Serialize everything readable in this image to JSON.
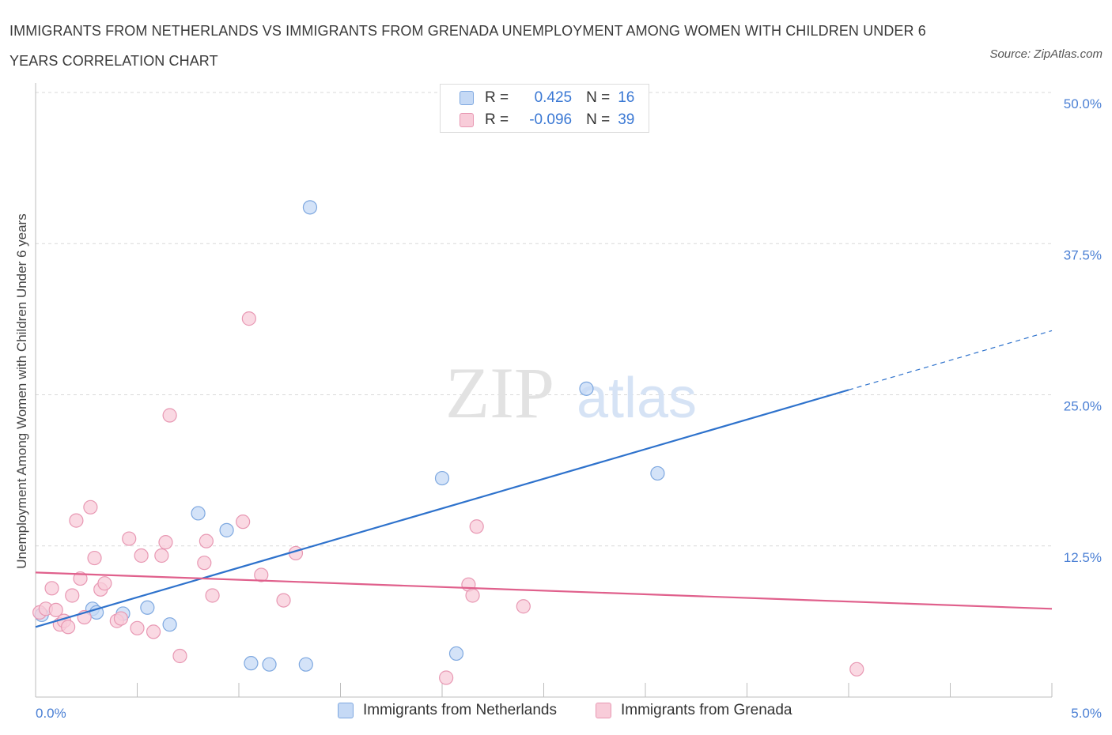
{
  "header": {
    "title": "IMMIGRANTS FROM NETHERLANDS VS IMMIGRANTS FROM GRENADA UNEMPLOYMENT AMONG WOMEN WITH CHILDREN UNDER 6 YEARS CORRELATION CHART",
    "source": "Source: ZipAtlas.com"
  },
  "watermark": {
    "zip": "ZIP",
    "atlas": "atlas"
  },
  "legend": {
    "r_label": "R =",
    "n_label": "N =",
    "rows": [
      {
        "r": "0.425",
        "n": "16"
      },
      {
        "r": "-0.096",
        "n": "39"
      }
    ]
  },
  "colors": {
    "netherlands_fill": "#c5d9f5",
    "netherlands_stroke": "#7ea8e0",
    "netherlands_line": "#2e72cc",
    "grenada_fill": "#f8ccd9",
    "grenada_stroke": "#e898b3",
    "grenada_line": "#e0608c",
    "tick_text": "#4a7fd4",
    "grid": "#d9d9d9"
  },
  "chart_data": {
    "type": "scatter",
    "title": "IMMIGRANTS FROM NETHERLANDS VS IMMIGRANTS FROM GRENADA UNEMPLOYMENT AMONG WOMEN WITH CHILDREN UNDER 6 YEARS CORRELATION CHART",
    "xlabel": "",
    "ylabel": "Unemployment Among Women with Children Under 6 years",
    "xlim": [
      0,
      5
    ],
    "ylim": [
      0,
      50
    ],
    "x_tick_labels": [
      "0.0%",
      "5.0%"
    ],
    "y_ticks": [
      12.5,
      25.0,
      37.5,
      50.0
    ],
    "y_tick_labels": [
      "12.5%",
      "25.0%",
      "37.5%",
      "50.0%"
    ],
    "grid": true,
    "legend_position": "bottom",
    "series": [
      {
        "name": "Immigrants from Netherlands",
        "r": 0.425,
        "n": 16,
        "points": [
          [
            0.03,
            6.8
          ],
          [
            0.28,
            7.3
          ],
          [
            0.3,
            7.0
          ],
          [
            0.43,
            6.9
          ],
          [
            0.55,
            7.4
          ],
          [
            0.66,
            6.0
          ],
          [
            0.8,
            15.2
          ],
          [
            0.94,
            13.8
          ],
          [
            1.06,
            2.8
          ],
          [
            1.15,
            2.7
          ],
          [
            1.35,
            40.5
          ],
          [
            1.33,
            2.7
          ],
          [
            2.0,
            18.1
          ],
          [
            2.07,
            3.6
          ],
          [
            2.71,
            25.5
          ],
          [
            3.06,
            18.5
          ]
        ],
        "trend": {
          "x0": 0.0,
          "y0": 5.8,
          "x1": 4.0,
          "y1": 25.4,
          "dash_to_x": 5.0,
          "dash_to_y": 30.3
        }
      },
      {
        "name": "Immigrants from Grenada",
        "r": -0.096,
        "n": 39,
        "points": [
          [
            0.02,
            7.0
          ],
          [
            0.05,
            7.3
          ],
          [
            0.08,
            9.0
          ],
          [
            0.1,
            7.2
          ],
          [
            0.12,
            6.0
          ],
          [
            0.14,
            6.3
          ],
          [
            0.16,
            5.8
          ],
          [
            0.18,
            8.4
          ],
          [
            0.2,
            14.6
          ],
          [
            0.22,
            9.8
          ],
          [
            0.24,
            6.6
          ],
          [
            0.27,
            15.7
          ],
          [
            0.29,
            11.5
          ],
          [
            0.32,
            8.9
          ],
          [
            0.34,
            9.4
          ],
          [
            0.4,
            6.3
          ],
          [
            0.42,
            6.5
          ],
          [
            0.46,
            13.1
          ],
          [
            0.5,
            5.7
          ],
          [
            0.52,
            11.7
          ],
          [
            0.58,
            5.4
          ],
          [
            0.62,
            11.7
          ],
          [
            0.64,
            12.8
          ],
          [
            0.66,
            23.3
          ],
          [
            0.71,
            3.4
          ],
          [
            0.83,
            11.1
          ],
          [
            0.84,
            12.9
          ],
          [
            0.87,
            8.4
          ],
          [
            1.02,
            14.5
          ],
          [
            1.05,
            31.3
          ],
          [
            1.11,
            10.1
          ],
          [
            1.22,
            8.0
          ],
          [
            1.28,
            11.9
          ],
          [
            2.02,
            1.6
          ],
          [
            2.13,
            9.3
          ],
          [
            2.15,
            8.4
          ],
          [
            2.17,
            14.1
          ],
          [
            2.4,
            7.5
          ],
          [
            4.04,
            2.3
          ]
        ],
        "trend": {
          "x0": 0.0,
          "y0": 10.3,
          "x1": 5.0,
          "y1": 7.3
        }
      }
    ]
  }
}
